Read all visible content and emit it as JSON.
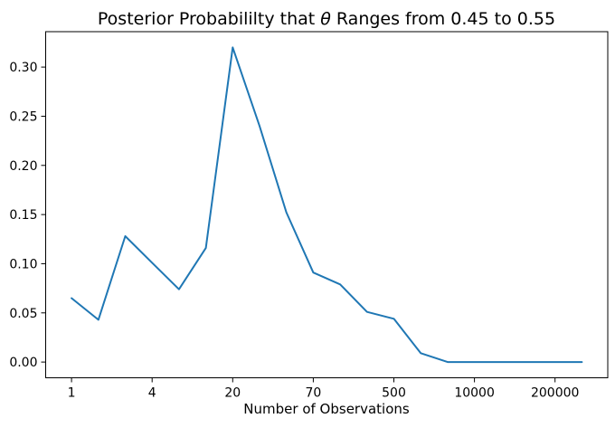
{
  "figure": {
    "background_color": "#ffffff",
    "title_parts": {
      "prefix": "Posterior Probabililty that",
      "theta": "θ",
      "suffix": "Ranges from 0.45 to 0.55"
    }
  },
  "chart_data": {
    "type": "line",
    "title": "Posterior Probabililty that θ Ranges from 0.45 to 0.55",
    "xlabel": "Number of Observations",
    "ylabel": "",
    "x_index": [
      0,
      1,
      2,
      3,
      4,
      5,
      6,
      7,
      8,
      9,
      10,
      11,
      12,
      13,
      14,
      15,
      16,
      17,
      18,
      19
    ],
    "values": [
      0.065,
      0.043,
      0.128,
      0.101,
      0.074,
      0.116,
      0.32,
      0.24,
      0.152,
      0.091,
      0.079,
      0.051,
      0.044,
      0.009,
      0.0,
      0.0,
      0.0,
      0.0,
      0.0,
      0.0
    ],
    "xticks": [
      {
        "index": 0,
        "label": "1"
      },
      {
        "index": 3,
        "label": "4"
      },
      {
        "index": 6,
        "label": "20"
      },
      {
        "index": 9,
        "label": "70"
      },
      {
        "index": 12,
        "label": "500"
      },
      {
        "index": 15,
        "label": "10000"
      },
      {
        "index": 18,
        "label": "200000"
      }
    ],
    "yticks": [
      {
        "value": 0.0,
        "label": "0.00"
      },
      {
        "value": 0.05,
        "label": "0.05"
      },
      {
        "value": 0.1,
        "label": "0.10"
      },
      {
        "value": 0.15,
        "label": "0.15"
      },
      {
        "value": 0.2,
        "label": "0.20"
      },
      {
        "value": 0.25,
        "label": "0.25"
      },
      {
        "value": 0.3,
        "label": "0.30"
      }
    ],
    "ylim": [
      -0.016,
      0.336
    ],
    "grid": false,
    "legend": null,
    "line_color": "#1f77b4"
  }
}
